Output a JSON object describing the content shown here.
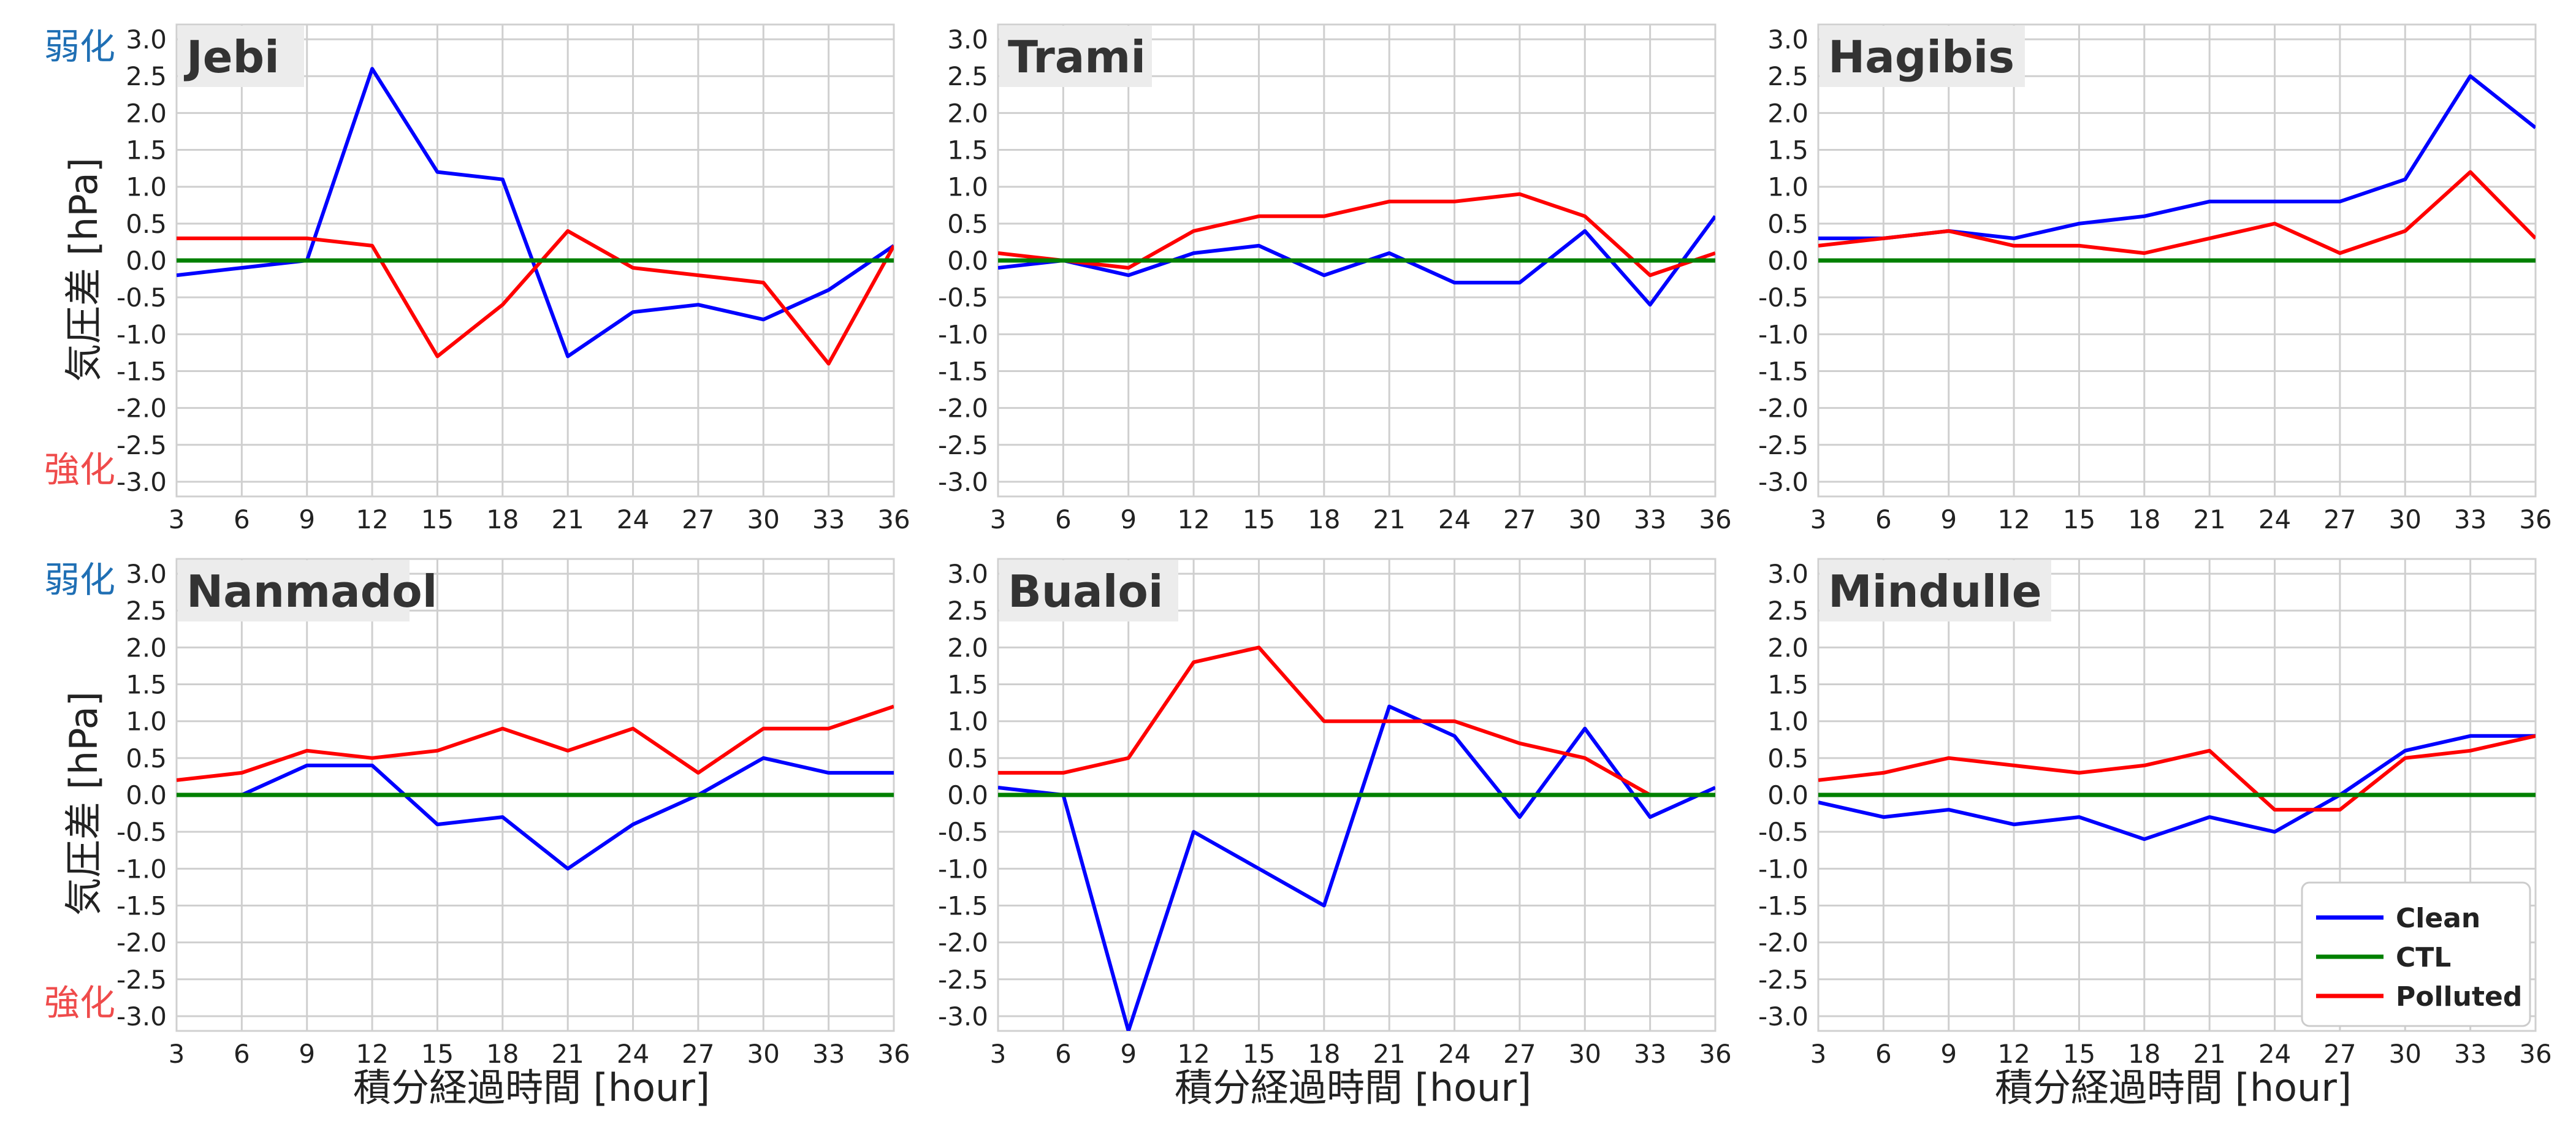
{
  "figure": {
    "xlabel": "積分経過時間 [hour]",
    "ylabel": "気圧差 [hPa]",
    "note_weak": "弱化",
    "note_strong": "強化",
    "colors": {
      "Clean": "#0000ff",
      "CTL": "#008000",
      "Polluted": "#ff0000"
    }
  },
  "legend": {
    "entries": [
      "Clean",
      "CTL",
      "Polluted"
    ],
    "placement": "lower right of Mindulle panel"
  },
  "chart_data": [
    {
      "type": "line",
      "title": "Jebi",
      "x": [
        3,
        6,
        9,
        12,
        15,
        18,
        21,
        24,
        27,
        30,
        33,
        36
      ],
      "xlim": [
        3,
        36
      ],
      "ylim": [
        -3.2,
        3.2
      ],
      "yticks": [
        "3.0",
        "2.5",
        "2.0",
        "1.5",
        "1.0",
        "0.5",
        "0.0",
        "-0.5",
        "-1.0",
        "-1.5",
        "-2.0",
        "-2.5",
        "-3.0"
      ],
      "xticks": [
        "3",
        "6",
        "9",
        "12",
        "15",
        "18",
        "21",
        "24",
        "27",
        "30",
        "33",
        "36"
      ],
      "series": [
        {
          "name": "Clean",
          "values": [
            -0.2,
            -0.1,
            0.0,
            2.6,
            1.2,
            1.1,
            -1.3,
            -0.7,
            -0.6,
            -0.8,
            -0.4,
            0.2
          ]
        },
        {
          "name": "CTL",
          "values": [
            0,
            0,
            0,
            0,
            0,
            0,
            0,
            0,
            0,
            0,
            0,
            0
          ]
        },
        {
          "name": "Polluted",
          "values": [
            0.3,
            0.3,
            0.3,
            0.2,
            -1.3,
            -0.6,
            0.4,
            -0.1,
            -0.2,
            -0.3,
            -1.4,
            0.2
          ]
        }
      ]
    },
    {
      "type": "line",
      "title": "Trami",
      "x": [
        3,
        6,
        9,
        12,
        15,
        18,
        21,
        24,
        27,
        30,
        33,
        36
      ],
      "xlim": [
        3,
        36
      ],
      "ylim": [
        -3.2,
        3.2
      ],
      "yticks": [
        "3.0",
        "2.5",
        "2.0",
        "1.5",
        "1.0",
        "0.5",
        "0.0",
        "-0.5",
        "-1.0",
        "-1.5",
        "-2.0",
        "-2.5",
        "-3.0"
      ],
      "xticks": [
        "3",
        "6",
        "9",
        "12",
        "15",
        "18",
        "21",
        "24",
        "27",
        "30",
        "33",
        "36"
      ],
      "series": [
        {
          "name": "Clean",
          "values": [
            -0.1,
            0.0,
            -0.2,
            0.1,
            0.2,
            -0.2,
            0.1,
            -0.3,
            -0.3,
            0.4,
            -0.6,
            0.6
          ]
        },
        {
          "name": "CTL",
          "values": [
            0,
            0,
            0,
            0,
            0,
            0,
            0,
            0,
            0,
            0,
            0,
            0
          ]
        },
        {
          "name": "Polluted",
          "values": [
            0.1,
            0.0,
            -0.1,
            0.4,
            0.6,
            0.6,
            0.8,
            0.8,
            0.9,
            0.6,
            -0.2,
            0.1
          ]
        }
      ]
    },
    {
      "type": "line",
      "title": "Hagibis",
      "x": [
        3,
        6,
        9,
        12,
        15,
        18,
        21,
        24,
        27,
        30,
        33,
        36
      ],
      "xlim": [
        3,
        36
      ],
      "ylim": [
        -3.2,
        3.2
      ],
      "yticks": [
        "3.0",
        "2.5",
        "2.0",
        "1.5",
        "1.0",
        "0.5",
        "0.0",
        "-0.5",
        "-1.0",
        "-1.5",
        "-2.0",
        "-2.5",
        "-3.0"
      ],
      "xticks": [
        "3",
        "6",
        "9",
        "12",
        "15",
        "18",
        "21",
        "24",
        "27",
        "30",
        "33",
        "36"
      ],
      "series": [
        {
          "name": "Clean",
          "values": [
            0.3,
            0.3,
            0.4,
            0.3,
            0.5,
            0.6,
            0.8,
            0.8,
            0.8,
            1.1,
            2.5,
            1.8
          ]
        },
        {
          "name": "CTL",
          "values": [
            0,
            0,
            0,
            0,
            0,
            0,
            0,
            0,
            0,
            0,
            0,
            0
          ]
        },
        {
          "name": "Polluted",
          "values": [
            0.2,
            0.3,
            0.4,
            0.2,
            0.2,
            0.1,
            0.3,
            0.5,
            0.1,
            0.4,
            1.2,
            0.3
          ]
        }
      ]
    },
    {
      "type": "line",
      "title": "Nanmadol",
      "x": [
        3,
        6,
        9,
        12,
        15,
        18,
        21,
        24,
        27,
        30,
        33,
        36
      ],
      "xlim": [
        3,
        36
      ],
      "ylim": [
        -3.2,
        3.2
      ],
      "yticks": [
        "3.0",
        "2.5",
        "2.0",
        "1.5",
        "1.0",
        "0.5",
        "0.0",
        "-0.5",
        "-1.0",
        "-1.5",
        "-2.0",
        "-2.5",
        "-3.0"
      ],
      "xticks": [
        "3",
        "6",
        "9",
        "12",
        "15",
        "18",
        "21",
        "24",
        "27",
        "30",
        "33",
        "36"
      ],
      "series": [
        {
          "name": "Clean",
          "values": [
            0.0,
            0.0,
            0.4,
            0.4,
            -0.4,
            -0.3,
            -1.0,
            -0.4,
            0.0,
            0.5,
            0.3,
            0.3
          ]
        },
        {
          "name": "CTL",
          "values": [
            0,
            0,
            0,
            0,
            0,
            0,
            0,
            0,
            0,
            0,
            0,
            0
          ]
        },
        {
          "name": "Polluted",
          "values": [
            0.2,
            0.3,
            0.6,
            0.5,
            0.6,
            0.9,
            0.6,
            0.9,
            0.3,
            0.9,
            0.9,
            1.2
          ]
        }
      ]
    },
    {
      "type": "line",
      "title": "Bualoi",
      "x": [
        3,
        6,
        9,
        12,
        15,
        18,
        21,
        24,
        27,
        30,
        33,
        36
      ],
      "xlim": [
        3,
        36
      ],
      "ylim": [
        -3.2,
        3.2
      ],
      "yticks": [
        "3.0",
        "2.5",
        "2.0",
        "1.5",
        "1.0",
        "0.5",
        "0.0",
        "-0.5",
        "-1.0",
        "-1.5",
        "-2.0",
        "-2.5",
        "-3.0"
      ],
      "xticks": [
        "3",
        "6",
        "9",
        "12",
        "15",
        "18",
        "21",
        "24",
        "27",
        "30",
        "33",
        "36"
      ],
      "series": [
        {
          "name": "Clean",
          "values": [
            0.1,
            0.0,
            -3.2,
            -0.5,
            -1.0,
            -1.5,
            1.2,
            0.8,
            -0.3,
            0.9,
            -0.3,
            0.1
          ]
        },
        {
          "name": "CTL",
          "values": [
            0,
            0,
            0,
            0,
            0,
            0,
            0,
            0,
            0,
            0,
            0,
            0
          ]
        },
        {
          "name": "Polluted",
          "values": [
            0.3,
            0.3,
            0.5,
            1.8,
            2.0,
            1.0,
            1.0,
            1.0,
            0.7,
            0.5,
            0.0,
            0.0
          ]
        }
      ]
    },
    {
      "type": "line",
      "title": "Mindulle",
      "x": [
        3,
        6,
        9,
        12,
        15,
        18,
        21,
        24,
        27,
        30,
        33,
        36
      ],
      "xlim": [
        3,
        36
      ],
      "ylim": [
        -3.2,
        3.2
      ],
      "yticks": [
        "3.0",
        "2.5",
        "2.0",
        "1.5",
        "1.0",
        "0.5",
        "0.0",
        "-0.5",
        "-1.0",
        "-1.5",
        "-2.0",
        "-2.5",
        "-3.0"
      ],
      "xticks": [
        "3",
        "6",
        "9",
        "12",
        "15",
        "18",
        "21",
        "24",
        "27",
        "30",
        "33",
        "36"
      ],
      "series": [
        {
          "name": "Clean",
          "values": [
            -0.1,
            -0.3,
            -0.2,
            -0.4,
            -0.3,
            -0.6,
            -0.3,
            -0.5,
            0.0,
            0.6,
            0.8,
            0.8
          ]
        },
        {
          "name": "CTL",
          "values": [
            0,
            0,
            0,
            0,
            0,
            0,
            0,
            0,
            0,
            0,
            0,
            0
          ]
        },
        {
          "name": "Polluted",
          "values": [
            0.2,
            0.3,
            0.5,
            0.4,
            0.3,
            0.4,
            0.6,
            -0.2,
            -0.2,
            0.5,
            0.6,
            0.8
          ]
        }
      ]
    }
  ]
}
